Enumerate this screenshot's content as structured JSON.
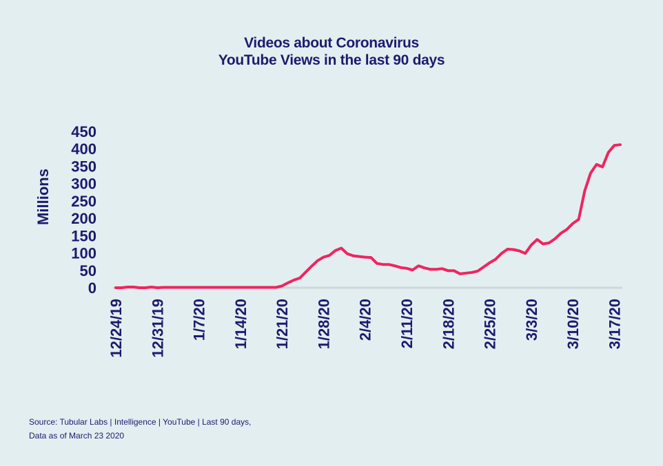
{
  "chart_data": {
    "type": "line",
    "title": "Videos about Coronavirus",
    "subtitle": "YouTube Views in the last 90 days",
    "ylabel": "Millions",
    "xlabel": "",
    "ylim": [
      0,
      450
    ],
    "yticks": [
      0,
      50,
      100,
      150,
      200,
      250,
      300,
      350,
      400,
      450
    ],
    "x_start": "12/24/19",
    "xticks": [
      {
        "label": "12/24/19",
        "index": 0
      },
      {
        "label": "12/31/19",
        "index": 7
      },
      {
        "label": "1/7/20",
        "index": 14
      },
      {
        "label": "1/14/20",
        "index": 21
      },
      {
        "label": "1/21/20",
        "index": 28
      },
      {
        "label": "1/28/20",
        "index": 35
      },
      {
        "label": "2/4/20",
        "index": 42
      },
      {
        "label": "2/11/20",
        "index": 49
      },
      {
        "label": "2/18/20",
        "index": 56
      },
      {
        "label": "2/25/20",
        "index": 63
      },
      {
        "label": "3/3/20",
        "index": 70
      },
      {
        "label": "3/10/20",
        "index": 77
      },
      {
        "label": "3/17/20",
        "index": 84
      }
    ],
    "series": [
      {
        "name": "",
        "color": "#f0245f",
        "values": [
          0,
          0,
          2,
          2,
          0,
          0,
          2,
          0,
          1,
          1,
          1,
          1,
          1,
          1,
          1,
          1,
          1,
          1,
          1,
          1,
          1,
          1,
          1,
          1,
          1,
          1,
          1,
          1,
          5,
          14,
          22,
          28,
          45,
          62,
          78,
          88,
          93,
          107,
          114,
          98,
          92,
          90,
          88,
          87,
          70,
          67,
          67,
          63,
          58,
          56,
          51,
          63,
          57,
          53,
          53,
          55,
          49,
          49,
          40,
          42,
          44,
          48,
          60,
          72,
          82,
          99,
          111,
          110,
          106,
          99,
          123,
          139,
          126,
          129,
          141,
          157,
          168,
          185,
          197,
          278,
          330,
          355,
          348,
          390,
          410,
          412
        ]
      }
    ]
  },
  "footer": {
    "source_line1": "Source: Tubular Labs | Intelligence | YouTube | Last 90 days,",
    "source_line2": "Data as of March 23 2020"
  }
}
